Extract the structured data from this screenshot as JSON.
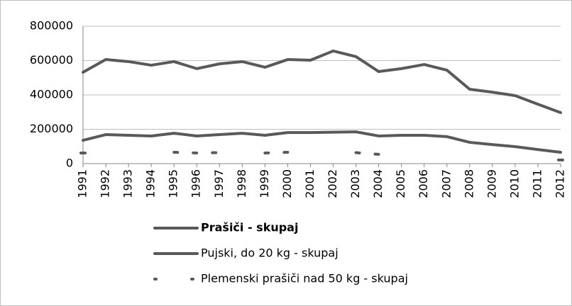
{
  "chart_data": {
    "type": "line",
    "categories": [
      "1991",
      "1992",
      "1993",
      "1994",
      "1995",
      "1996",
      "1997",
      "1998",
      "1999",
      "2000",
      "2001",
      "2002",
      "2003",
      "2004",
      "2005",
      "2006",
      "2007",
      "2008",
      "2009",
      "2010",
      "2011",
      "2012"
    ],
    "series": [
      {
        "name": "Prašiči - skupaj",
        "color": "#595959",
        "dash": "solid",
        "bold": true,
        "values": [
          532000,
          606000,
          594000,
          573000,
          594000,
          553000,
          581000,
          594000,
          561000,
          606000,
          602000,
          656000,
          623000,
          536000,
          553000,
          577000,
          544000,
          433000,
          416000,
          396000,
          346000,
          297000
        ]
      },
      {
        "name": "Pujski, do 20 kg - skupaj",
        "color": "#595959",
        "dash": "solid",
        "bold": false,
        "values": [
          136000,
          169000,
          165000,
          161000,
          177000,
          161000,
          169000,
          177000,
          165000,
          181000,
          181000,
          183000,
          185000,
          161000,
          165000,
          165000,
          157000,
          124000,
          111000,
          99000,
          82000,
          66000
        ]
      },
      {
        "name": "Plemenski prašiči nad 50 kg - skupaj",
        "color": "#595959",
        "dash": "dot",
        "bold": false,
        "values": [
          62000,
          null,
          null,
          null,
          66000,
          62000,
          64000,
          null,
          62000,
          66000,
          null,
          null,
          64000,
          54000,
          null,
          null,
          null,
          null,
          null,
          null,
          null,
          21000
        ]
      }
    ],
    "ylim": [
      0,
      800000
    ],
    "yticks": [
      0,
      200000,
      400000,
      600000,
      800000
    ],
    "grid": true,
    "legend": "bottom"
  }
}
